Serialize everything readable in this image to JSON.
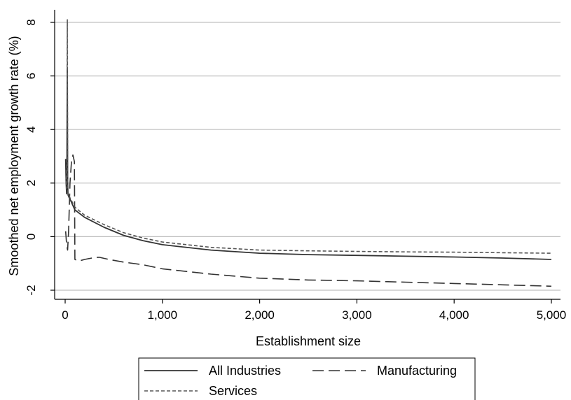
{
  "chart_data": {
    "type": "line",
    "title": "",
    "xlabel": "Establishment size",
    "ylabel": "Smoothed net employment growth rate (%)",
    "xlim": [
      0,
      5000
    ],
    "ylim": [
      -2,
      8
    ],
    "xticks": [
      0,
      1000,
      2000,
      3000,
      4000,
      5000
    ],
    "xtick_labels": [
      "0",
      "1,000",
      "2,000",
      "3,000",
      "4,000",
      "5,000"
    ],
    "yticks": [
      -2,
      0,
      2,
      4,
      6,
      8
    ],
    "ytick_labels": [
      "-2",
      "0",
      "2",
      "4",
      "6",
      "8"
    ],
    "grid": "horizontal",
    "legend_position": "bottom",
    "series": [
      {
        "name": "All Industries",
        "style": "solid",
        "color": "#333333",
        "x": [
          5,
          10,
          15,
          18,
          20,
          22,
          24,
          26,
          28,
          30,
          35,
          50,
          100,
          200,
          400,
          600,
          800,
          1000,
          1500,
          2000,
          2500,
          3000,
          3500,
          4000,
          4500,
          5000
        ],
        "y": [
          2.9,
          2.0,
          1.6,
          2.6,
          4.5,
          6.3,
          4.0,
          2.0,
          1.7,
          1.55,
          1.5,
          1.4,
          1.0,
          0.72,
          0.35,
          0.05,
          -0.15,
          -0.3,
          -0.5,
          -0.62,
          -0.67,
          -0.7,
          -0.73,
          -0.76,
          -0.8,
          -0.85
        ]
      },
      {
        "name": "Manufacturing",
        "style": "dashed",
        "color": "#333333",
        "x": [
          5,
          15,
          25,
          35,
          50,
          65,
          80,
          95,
          100,
          120,
          150,
          200,
          300,
          350,
          450,
          600,
          800,
          1000,
          1500,
          2000,
          2500,
          3000,
          3500,
          4000,
          4500,
          5000
        ],
        "y": [
          0.2,
          -0.3,
          -0.5,
          0.2,
          2.0,
          2.8,
          3.05,
          2.8,
          -0.85,
          -0.88,
          -0.9,
          -0.85,
          -0.78,
          -0.77,
          -0.85,
          -0.95,
          -1.05,
          -1.2,
          -1.4,
          -1.55,
          -1.62,
          -1.65,
          -1.7,
          -1.75,
          -1.8,
          -1.85
        ]
      },
      {
        "name": "Services",
        "style": "dotted",
        "color": "#555555",
        "x": [
          5,
          10,
          15,
          18,
          20,
          22,
          24,
          26,
          28,
          30,
          35,
          50,
          100,
          200,
          400,
          600,
          800,
          1000,
          1500,
          2000,
          2500,
          3000,
          3500,
          4000,
          4500,
          5000
        ],
        "y": [
          2.5,
          2.1,
          1.8,
          3.0,
          6.0,
          8.1,
          5.0,
          2.3,
          1.7,
          1.6,
          1.55,
          1.45,
          1.1,
          0.8,
          0.45,
          0.15,
          -0.05,
          -0.2,
          -0.4,
          -0.5,
          -0.53,
          -0.55,
          -0.57,
          -0.58,
          -0.6,
          -0.62
        ]
      }
    ]
  }
}
